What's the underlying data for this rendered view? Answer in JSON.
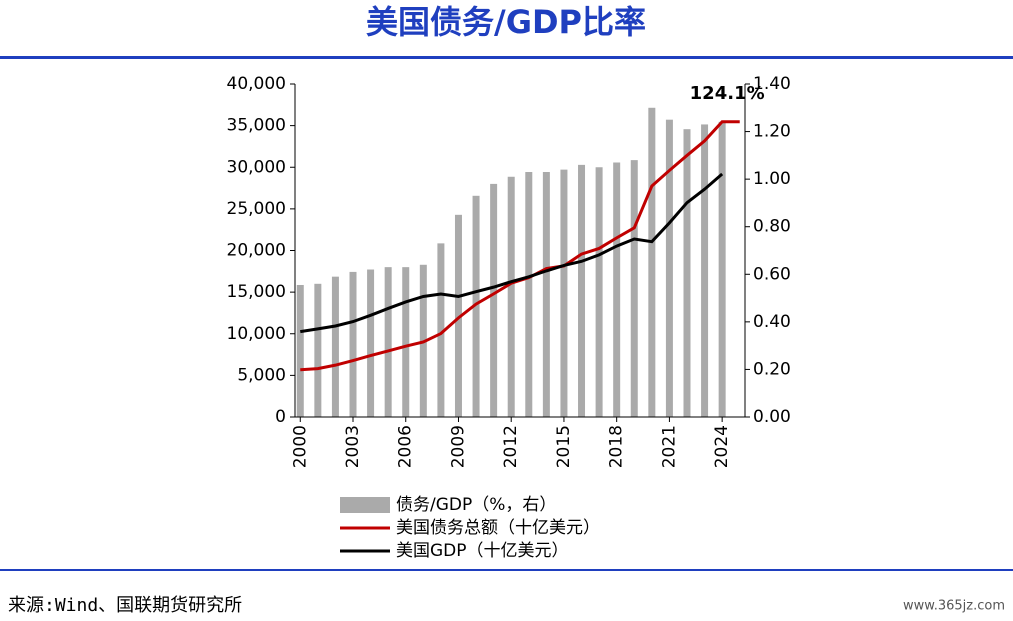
{
  "chart_data": {
    "type": "bar-line",
    "title": "美国债务/GDP比率",
    "x": [
      2000,
      2001,
      2002,
      2003,
      2004,
      2005,
      2006,
      2007,
      2008,
      2009,
      2010,
      2011,
      2012,
      2013,
      2014,
      2015,
      2016,
      2017,
      2018,
      2019,
      2020,
      2021,
      2022,
      2023,
      2024,
      2025
    ],
    "series": [
      {
        "name": "债务/GDP（%，右）",
        "type": "bar",
        "axis": "y2",
        "color": "#aaaaaa",
        "values": [
          0.555,
          0.56,
          0.59,
          0.61,
          0.62,
          0.63,
          0.63,
          0.64,
          0.73,
          0.85,
          0.93,
          0.98,
          1.01,
          1.03,
          1.03,
          1.04,
          1.06,
          1.05,
          1.07,
          1.08,
          1.3,
          1.25,
          1.21,
          1.23,
          1.241,
          null
        ]
      },
      {
        "name": "美国债务总额（十亿美元）",
        "type": "line",
        "axis": "y",
        "color": "#c00000",
        "values": [
          5674,
          5807,
          6228,
          6783,
          7379,
          7933,
          8507,
          9008,
          10025,
          11910,
          13562,
          14790,
          16066,
          16738,
          17824,
          18151,
          19573,
          20245,
          21516,
          22719,
          27748,
          29617,
          31420,
          33167,
          35465,
          35465
        ]
      },
      {
        "name": "美国GDP（十亿美元）",
        "type": "line",
        "axis": "y",
        "color": "#000000",
        "values": [
          10251,
          10582,
          10929,
          11457,
          12217,
          13039,
          13816,
          14474,
          14770,
          14478,
          15049,
          15600,
          16254,
          16843,
          17551,
          18206,
          18695,
          19477,
          20533,
          21381,
          21060,
          23315,
          25744,
          27361,
          29185,
          null
        ]
      }
    ],
    "annotation": "124.1%",
    "xlim": [
      1999.7,
      2025.3
    ],
    "xticks": [
      2000,
      2003,
      2006,
      2009,
      2012,
      2015,
      2018,
      2021,
      2024
    ],
    "ylim": [
      0,
      40000
    ],
    "yticks": [
      0,
      {
        "value": 5000,
        "label": "5,000"
      },
      {
        "value": 10000,
        "label": "10,000"
      },
      {
        "value": 15000,
        "label": "15,000"
      },
      {
        "value": 20000,
        "label": "20,000"
      },
      {
        "value": 25000,
        "label": "25,000"
      },
      {
        "value": 30000,
        "label": "30,000"
      },
      {
        "value": 35000,
        "label": "35,000"
      },
      {
        "value": 40000,
        "label": "40,000"
      }
    ],
    "y2lim": [
      0,
      1.4
    ],
    "y2ticks": [
      {
        "value": 0,
        "label": "0.00"
      },
      {
        "value": 0.2,
        "label": "0.20"
      },
      {
        "value": 0.4,
        "label": "0.40"
      },
      {
        "value": 0.6,
        "label": "0.60"
      },
      {
        "value": 0.8,
        "label": "0.80"
      },
      {
        "value": 1.0,
        "label": "1.00"
      },
      {
        "value": 1.2,
        "label": "1.20"
      },
      {
        "value": 1.4,
        "label": "1.40"
      }
    ],
    "source": "来源:Wind、国联期货研究所",
    "watermark": "www.365jz.com"
  }
}
